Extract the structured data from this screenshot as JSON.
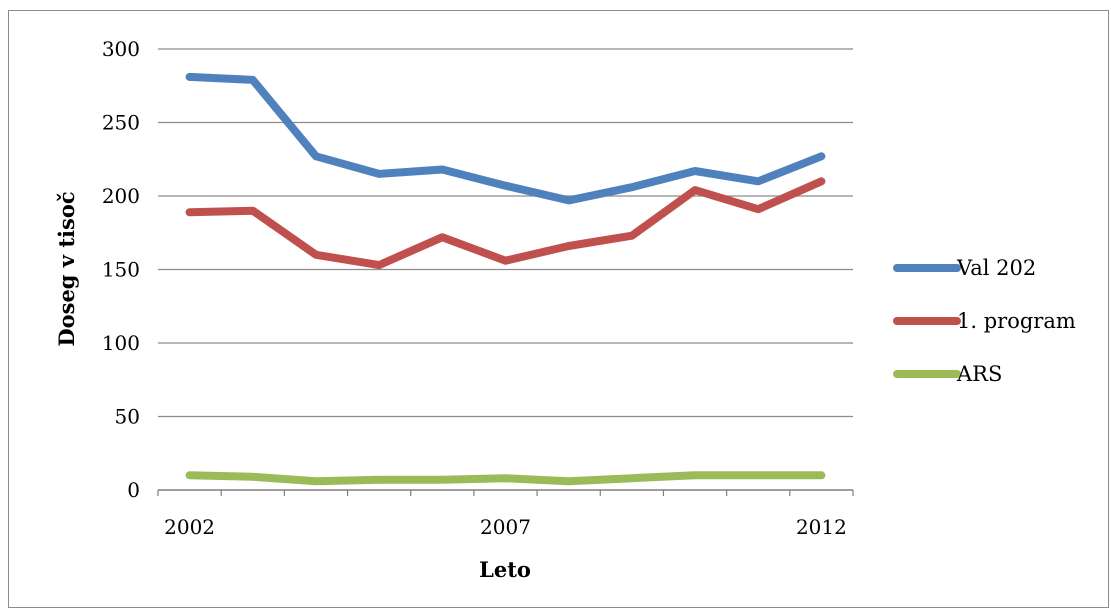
{
  "chart_data": {
    "type": "line",
    "xlabel": "Leto",
    "ylabel": "Doseg v tisoč",
    "x": [
      2002,
      2003,
      2004,
      2005,
      2006,
      2007,
      2008,
      2009,
      2010,
      2011,
      2012
    ],
    "x_tick_labels": [
      "2002",
      "2007",
      "2012"
    ],
    "x_tick_values": [
      2002,
      2007,
      2012
    ],
    "y_ticks": [
      0,
      50,
      100,
      150,
      200,
      250,
      300
    ],
    "ylim": [
      0,
      300
    ],
    "grid": "horizontal",
    "legend_position": "right",
    "series": [
      {
        "name": "Val 202",
        "color": "#4f81bd",
        "values": [
          281,
          279,
          227,
          215,
          218,
          207,
          197,
          206,
          217,
          210,
          227
        ]
      },
      {
        "name": "1. program",
        "color": "#c0504d",
        "values": [
          189,
          190,
          160,
          153,
          172,
          156,
          166,
          173,
          204,
          191,
          210
        ]
      },
      {
        "name": "ARS",
        "color": "#9bbb59",
        "values": [
          10,
          9,
          6,
          7,
          7,
          8,
          6,
          8,
          10,
          10,
          10
        ]
      }
    ]
  }
}
